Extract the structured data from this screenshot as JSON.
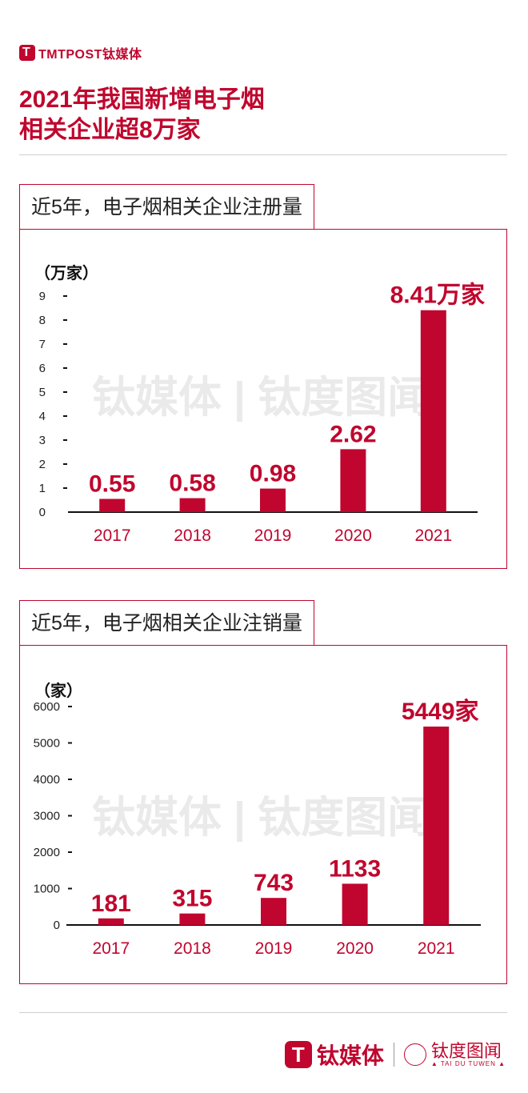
{
  "brand": {
    "logo_text": "TMTPOST钛媒体",
    "footer_name": "钛媒体",
    "footer_partner": "钛度图闻",
    "footer_partner_en": "▲ TAI DU TUWEN ▲"
  },
  "headline": {
    "line1": "2021年我国新增电子烟",
    "line2": "相关企业超8万家"
  },
  "colors": {
    "accent": "#c0062e"
  },
  "chart_data": [
    {
      "type": "bar",
      "title": "近5年，电子烟相关企业注册量",
      "unit_label": "（万家）",
      "categories": [
        "2017",
        "2018",
        "2019",
        "2020",
        "2021"
      ],
      "values": [
        0.55,
        0.58,
        0.98,
        2.62,
        8.41
      ],
      "value_labels": [
        "0.55",
        "0.58",
        "0.98",
        "2.62",
        "8.41万家"
      ],
      "yticks": [
        0,
        1,
        2,
        3,
        4,
        5,
        6,
        7,
        8,
        9
      ],
      "ylim": [
        0,
        9
      ]
    },
    {
      "type": "bar",
      "title": "近5年，电子烟相关企业注销量",
      "unit_label": "（家）",
      "categories": [
        "2017",
        "2018",
        "2019",
        "2020",
        "2021"
      ],
      "values": [
        181,
        315,
        743,
        1133,
        5449
      ],
      "value_labels": [
        "181",
        "315",
        "743",
        "1133",
        "5449家"
      ],
      "yticks": [
        0,
        1000,
        2000,
        3000,
        4000,
        5000,
        6000
      ],
      "ylim": [
        0,
        6000
      ]
    }
  ]
}
